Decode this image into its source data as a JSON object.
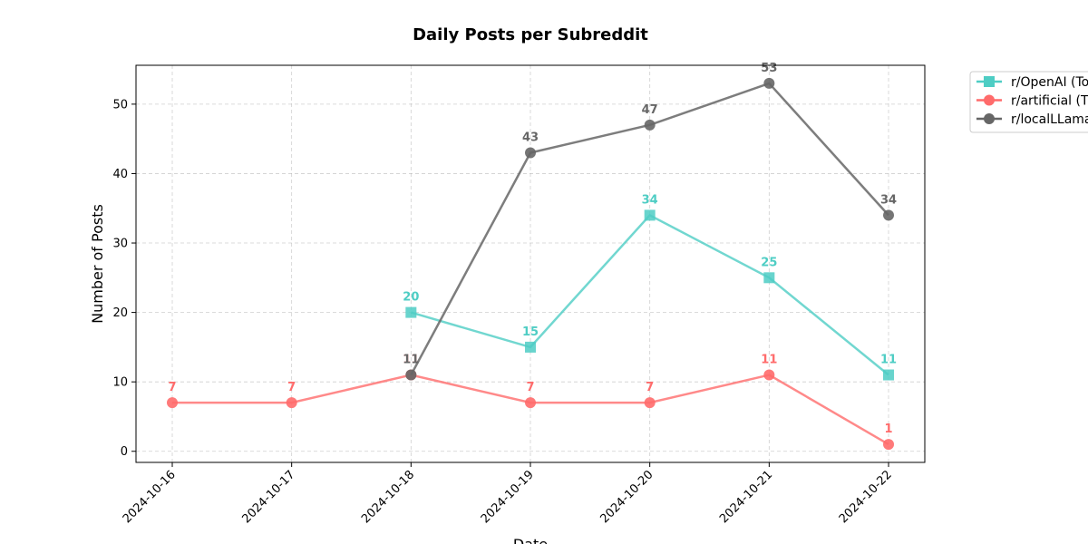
{
  "chart_data": {
    "type": "line",
    "title": "Daily Posts per Subreddit",
    "xlabel": "Date",
    "ylabel": "Number of Posts",
    "x": [
      "2024-10-16",
      "2024-10-17",
      "2024-10-18",
      "2024-10-19",
      "2024-10-20",
      "2024-10-21",
      "2024-10-22"
    ],
    "ylim": [
      -1.6,
      55.6
    ],
    "yticks": [
      0,
      10,
      20,
      30,
      40,
      50
    ],
    "grid": true,
    "legend_position": "outside-top-right",
    "series": [
      {
        "name": "r/OpenAI (To",
        "values": [
          null,
          null,
          20,
          15,
          34,
          25,
          11
        ],
        "color": "#4ecdc4",
        "marker": "square"
      },
      {
        "name": "r/artificial (T",
        "values": [
          7,
          7,
          11,
          7,
          7,
          11,
          1
        ],
        "color": "#ff6b6b",
        "marker": "circle"
      },
      {
        "name": "r/localLLama",
        "values": [
          null,
          null,
          11,
          43,
          47,
          53,
          34
        ],
        "color": "#666666",
        "marker": "circle"
      }
    ]
  }
}
